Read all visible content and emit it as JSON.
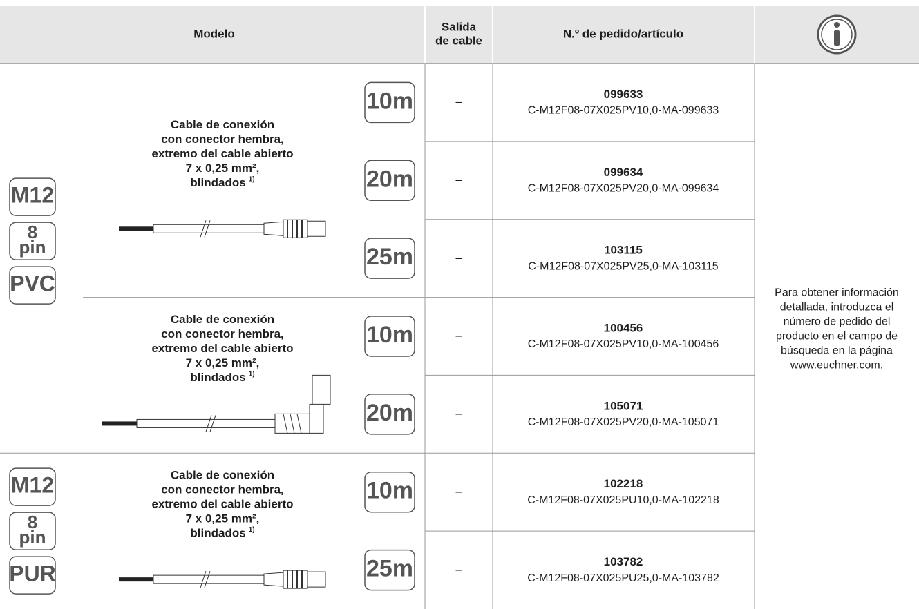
{
  "header": {
    "model": "Modelo",
    "cable_outlet": [
      "Salida",
      "de cable"
    ],
    "order_number": "N.º de pedido/artículo"
  },
  "groups": [
    {
      "badges": [
        [
          "M12"
        ],
        [
          "8",
          "pin"
        ],
        [
          "PVC"
        ]
      ],
      "variants": [
        {
          "description": [
            "Cable de conexión",
            "con conector hembra,",
            "extremo del cable abierto",
            "7 x 0,25 mm²,",
            "blindados"
          ],
          "footnote": "1)",
          "rows": [
            {
              "length": "10m",
              "outlet": "–",
              "number": "099633",
              "article": "C-M12F08-07X025PV10,0-MA-099633"
            },
            {
              "length": "20m",
              "outlet": "–",
              "number": "099634",
              "article": "C-M12F08-07X025PV20,0-MA-099634"
            },
            {
              "length": "25m",
              "outlet": "–",
              "number": "103115",
              "article": "C-M12F08-07X025PV25,0-MA-103115"
            }
          ]
        },
        {
          "description": [
            "Cable de conexión",
            "con conector hembra,",
            "extremo del cable abierto",
            "7 x 0,25 mm²,",
            "blindados"
          ],
          "footnote": "1)",
          "rows": [
            {
              "length": "10m",
              "outlet": "–",
              "number": "100456",
              "article": "C-M12F08-07X025PV10,0-MA-100456"
            },
            {
              "length": "20m",
              "outlet": "–",
              "number": "105071",
              "article": "C-M12F08-07X025PV20,0-MA-105071"
            }
          ]
        }
      ]
    },
    {
      "badges": [
        [
          "M12"
        ],
        [
          "8",
          "pin"
        ],
        [
          "PUR"
        ]
      ],
      "variants": [
        {
          "description": [
            "Cable de conexión",
            "con conector hembra,",
            "extremo del cable abierto",
            "7 x 0,25 mm²,",
            "blindados"
          ],
          "footnote": "1)",
          "rows": [
            {
              "length": "10m",
              "outlet": "–",
              "number": "102218",
              "article": "C-M12F08-07X025PU10,0-MA-102218"
            },
            {
              "length": "25m",
              "outlet": "–",
              "number": "103782",
              "article": "C-M12F08-07X025PU25,0-MA-103782"
            }
          ]
        }
      ]
    }
  ],
  "info": [
    "Para obtener información",
    "detallada, introduzca el",
    "número de pedido del",
    "producto en el campo de",
    "búsqueda en la página",
    "www.euchner.com."
  ]
}
